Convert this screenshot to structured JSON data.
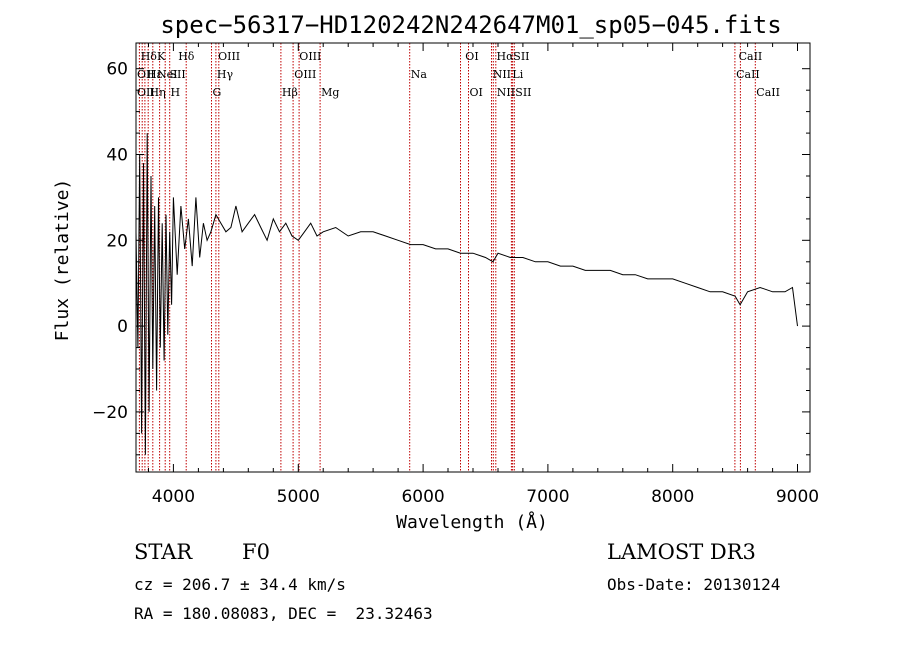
{
  "chart_data": {
    "type": "line",
    "title": "spec−56317−HD120242N242647M01_sp05−045.fits",
    "xlabel": "Wavelength (Å)",
    "ylabel": "Flux (relative)",
    "xlim": [
      3700,
      9100
    ],
    "ylim": [
      -34,
      66
    ],
    "xticks": [
      4000,
      5000,
      6000,
      7000,
      8000,
      9000
    ],
    "yticks": [
      -20,
      0,
      20,
      40,
      60
    ],
    "ytick_labels": [
      "−20",
      "0",
      "20",
      "40",
      "60"
    ],
    "series": [
      {
        "name": "flux",
        "x": [
          3700,
          3715,
          3730,
          3745,
          3760,
          3775,
          3790,
          3805,
          3820,
          3835,
          3850,
          3865,
          3880,
          3895,
          3910,
          3925,
          3940,
          3955,
          3970,
          3985,
          4000,
          4030,
          4060,
          4090,
          4120,
          4150,
          4180,
          4210,
          4240,
          4270,
          4300,
          4340,
          4380,
          4420,
          4460,
          4500,
          4550,
          4600,
          4650,
          4700,
          4750,
          4800,
          4850,
          4900,
          4950,
          5000,
          5050,
          5100,
          5150,
          5200,
          5300,
          5400,
          5500,
          5600,
          5700,
          5800,
          5900,
          6000,
          6100,
          6200,
          6300,
          6400,
          6500,
          6560,
          6600,
          6700,
          6800,
          6900,
          7000,
          7100,
          7200,
          7300,
          7400,
          7500,
          7600,
          7700,
          7800,
          7900,
          8000,
          8100,
          8200,
          8300,
          8400,
          8500,
          8540,
          8600,
          8700,
          8800,
          8900,
          8960,
          9000
        ],
        "y": [
          22,
          -5,
          40,
          -25,
          38,
          -30,
          45,
          -20,
          35,
          -10,
          28,
          -15,
          30,
          -5,
          24,
          -8,
          26,
          -2,
          22,
          5,
          30,
          12,
          28,
          18,
          25,
          14,
          30,
          16,
          24,
          20,
          22,
          26,
          24,
          22,
          23,
          28,
          22,
          24,
          26,
          23,
          20,
          25,
          22,
          24,
          21,
          20,
          22,
          24,
          21,
          22,
          23,
          21,
          22,
          22,
          21,
          20,
          19,
          19,
          18,
          18,
          17,
          17,
          16,
          15,
          17,
          16,
          16,
          15,
          15,
          14,
          14,
          13,
          13,
          13,
          12,
          12,
          11,
          11,
          11,
          10,
          9,
          8,
          8,
          7,
          5,
          8,
          9,
          8,
          8,
          9,
          0
        ]
      }
    ],
    "line_labels": [
      {
        "label": "Hδ",
        "x": 3730,
        "row": 1
      },
      {
        "label": "K",
        "x": 3860,
        "row": 1
      },
      {
        "label": "Hδ",
        "x": 4030,
        "row": 1
      },
      {
        "label": "OIII",
        "x": 4350,
        "row": 1
      },
      {
        "label": "OIII",
        "x": 5000,
        "row": 1
      },
      {
        "label": "OI",
        "x": 6330,
        "row": 1
      },
      {
        "label": "Hα",
        "x": 6580,
        "row": 1
      },
      {
        "label": "SII",
        "x": 6715,
        "row": 1
      },
      {
        "label": "CaII",
        "x": 8520,
        "row": 1
      },
      {
        "label": "OII",
        "x": 3700,
        "row": 2
      },
      {
        "label": "Hε",
        "x": 3780,
        "row": 2
      },
      {
        "label": "NeI",
        "x": 3860,
        "row": 2
      },
      {
        "label": "SII",
        "x": 3960,
        "row": 2
      },
      {
        "label": "Hγ",
        "x": 4340,
        "row": 2
      },
      {
        "label": "OIII",
        "x": 4960,
        "row": 2
      },
      {
        "label": "Na",
        "x": 5893,
        "row": 2
      },
      {
        "label": "NII",
        "x": 6550,
        "row": 2
      },
      {
        "label": "Li",
        "x": 6708,
        "row": 2
      },
      {
        "label": "CaII",
        "x": 8500,
        "row": 2
      },
      {
        "label": "OII",
        "x": 3700,
        "row": 3
      },
      {
        "label": "Hη",
        "x": 3800,
        "row": 3
      },
      {
        "label": "H",
        "x": 3968,
        "row": 3
      },
      {
        "label": "G",
        "x": 4305,
        "row": 3
      },
      {
        "label": "Hβ",
        "x": 4861,
        "row": 3
      },
      {
        "label": "Mg",
        "x": 5175,
        "row": 3
      },
      {
        "label": "OI",
        "x": 6364,
        "row": 3
      },
      {
        "label": "NII",
        "x": 6583,
        "row": 3
      },
      {
        "label": "SII",
        "x": 6731,
        "row": 3
      },
      {
        "label": "CaII",
        "x": 8662,
        "row": 3
      }
    ],
    "line_positions": [
      3727,
      3750,
      3771,
      3798,
      3835,
      3889,
      3934,
      3970,
      4102,
      4305,
      4340,
      4363,
      4861,
      4959,
      5007,
      5175,
      5893,
      6300,
      6364,
      6548,
      6563,
      6583,
      6708,
      6717,
      6731,
      8498,
      8542,
      8662
    ]
  },
  "info": {
    "object": "STAR",
    "subclass": "F0",
    "survey": "LAMOST DR3",
    "cz": "cz = 206.7 ± 34.4 km/s",
    "obs_date": "Obs-Date: 20130124",
    "coords": "RA = 180.08083, DEC =  23.32463"
  }
}
